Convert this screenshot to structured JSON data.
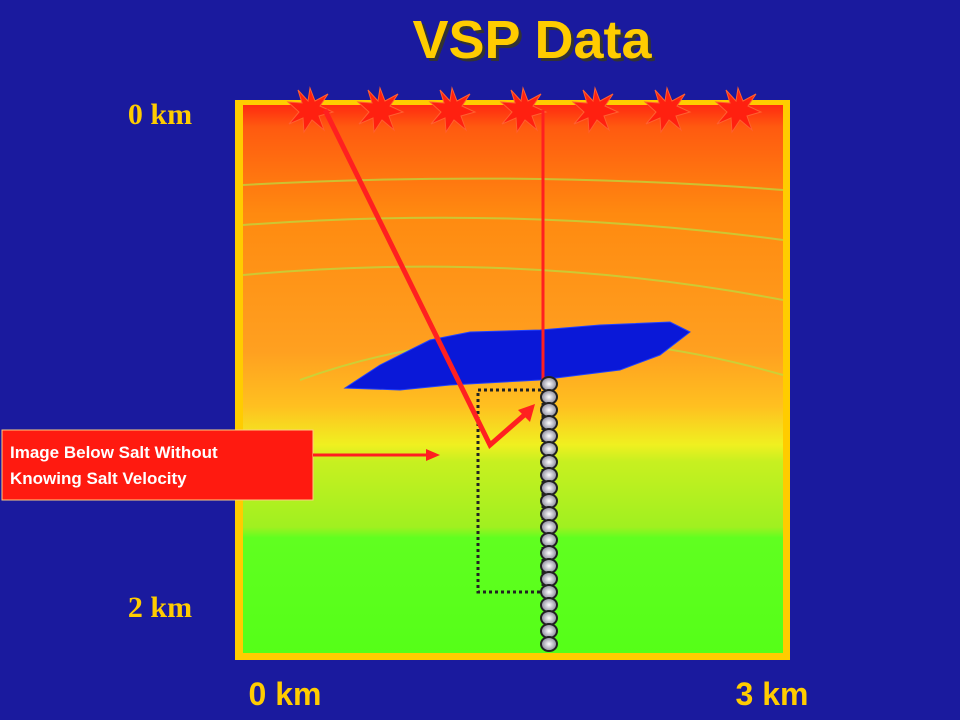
{
  "title": "VSP Data",
  "depth_labels": {
    "top": "0 km",
    "bottom": "2 km"
  },
  "distance_labels": {
    "left": "0 km",
    "right": "3 km"
  },
  "callout": {
    "lines": [
      "Image Below Salt Without",
      "Knowing Salt Velocity"
    ]
  }
}
